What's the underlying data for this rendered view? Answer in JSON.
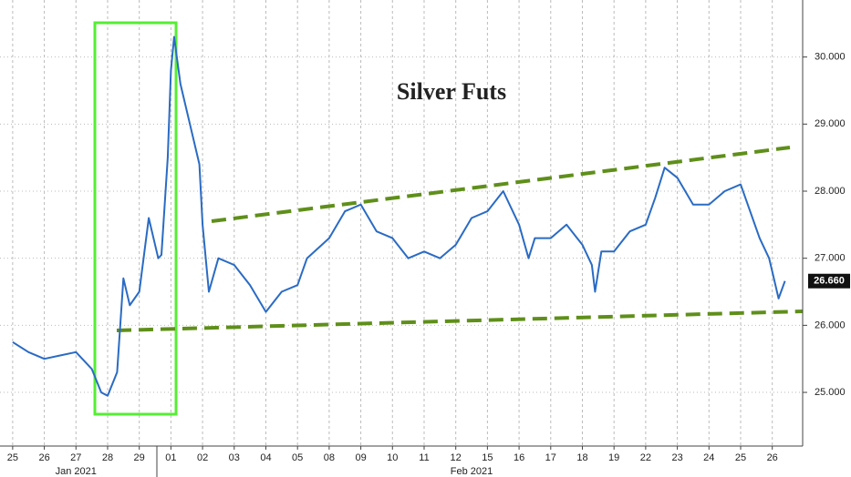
{
  "chart_data": {
    "type": "line",
    "title": "Silver Futs",
    "x": [
      0,
      0.5,
      1,
      1.5,
      2,
      2.5,
      2.8,
      3,
      3.3,
      3.5,
      3.7,
      4,
      4.3,
      4.6,
      4.7,
      4.9,
      5,
      5.1,
      5.3,
      5.6,
      5.9,
      6,
      6.2,
      6.5,
      7,
      7.5,
      8,
      8.5,
      9,
      9.3,
      10,
      10.5,
      11,
      11.5,
      12,
      12.5,
      13,
      13.5,
      14,
      14.5,
      15,
      15.5,
      16,
      16.3,
      16.5,
      17,
      17.5,
      18,
      18.3,
      18.4,
      18.6,
      19,
      19.5,
      20,
      20.3,
      20.6,
      21,
      21.5,
      22,
      22.5,
      23,
      23.3,
      23.6,
      23.9,
      24,
      24.2,
      24.4
    ],
    "series": [
      {
        "color": "#2a6bc4",
        "values": [
          25.75,
          25.6,
          25.5,
          25.55,
          25.6,
          25.35,
          25.0,
          24.95,
          25.3,
          26.7,
          26.3,
          26.5,
          27.6,
          27.0,
          27.05,
          28.5,
          29.8,
          30.3,
          29.6,
          29.0,
          28.4,
          27.5,
          26.5,
          27.0,
          26.9,
          26.6,
          26.2,
          26.5,
          26.6,
          27.0,
          27.3,
          27.7,
          27.8,
          27.4,
          27.3,
          27.0,
          27.1,
          27.0,
          27.2,
          27.6,
          27.7,
          28.0,
          27.5,
          27.0,
          27.3,
          27.3,
          27.5,
          27.2,
          26.9,
          26.5,
          27.1,
          27.1,
          27.4,
          27.5,
          27.9,
          28.35,
          28.2,
          27.8,
          27.8,
          28.0,
          28.1,
          27.7,
          27.3,
          27.0,
          26.8,
          26.4,
          26.66
        ]
      }
    ],
    "xlim": [
      -0.4,
      24.96
    ],
    "xticks": [
      {
        "value": 0,
        "label": "25"
      },
      {
        "value": 1,
        "label": "26"
      },
      {
        "value": 2,
        "label": "27"
      },
      {
        "value": 3,
        "label": "28"
      },
      {
        "value": 4,
        "label": "29"
      },
      {
        "value": 5,
        "label": "01"
      },
      {
        "value": 6,
        "label": "02"
      },
      {
        "value": 7,
        "label": "03"
      },
      {
        "value": 8,
        "label": "04"
      },
      {
        "value": 9,
        "label": "05"
      },
      {
        "value": 10,
        "label": "08"
      },
      {
        "value": 11,
        "label": "09"
      },
      {
        "value": 12,
        "label": "10"
      },
      {
        "value": 13,
        "label": "11"
      },
      {
        "value": 14,
        "label": "12"
      },
      {
        "value": 15,
        "label": "15"
      },
      {
        "value": 16,
        "label": "16"
      },
      {
        "value": 17,
        "label": "17"
      },
      {
        "value": 18,
        "label": "18"
      },
      {
        "value": 19,
        "label": "19"
      },
      {
        "value": 20,
        "label": "22"
      },
      {
        "value": 21,
        "label": "23"
      },
      {
        "value": 22,
        "label": "24"
      },
      {
        "value": 23,
        "label": "25"
      },
      {
        "value": 24,
        "label": "26"
      }
    ],
    "month_labels": [
      {
        "value": 2,
        "label": "Jan 2021"
      },
      {
        "value": 14.5,
        "label": "Feb 2021"
      }
    ],
    "ylim": [
      24.2,
      30.85
    ],
    "yticks": [
      {
        "value": 25,
        "label": "25.000"
      },
      {
        "value": 26,
        "label": "26.000"
      },
      {
        "value": 27,
        "label": "27.000"
      },
      {
        "value": 28,
        "label": "28.000"
      },
      {
        "value": 29,
        "label": "29.000"
      },
      {
        "value": 30,
        "label": "30.000"
      }
    ],
    "last_value": {
      "value": 26.66,
      "label": "26.660"
    },
    "grid": true
  }
}
